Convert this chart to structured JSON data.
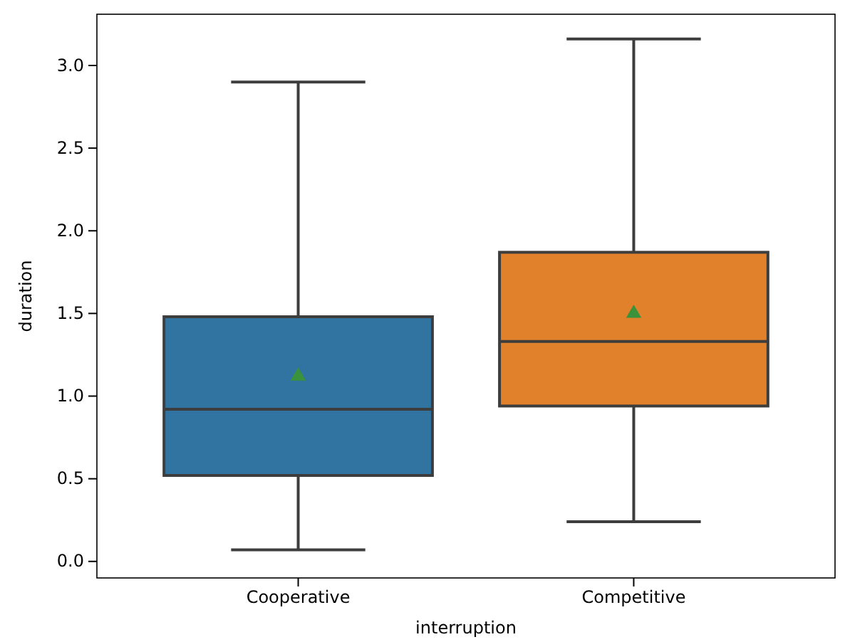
{
  "chart_data": {
    "type": "box",
    "xlabel": "interruption",
    "ylabel": "duration",
    "categories": [
      "Cooperative",
      "Competitive"
    ],
    "colors": [
      "#3274a1",
      "#e1812c"
    ],
    "boxes": [
      {
        "low": 0.07,
        "q1": 0.52,
        "median": 0.92,
        "q3": 1.48,
        "high": 2.9,
        "mean": 1.12
      },
      {
        "low": 0.24,
        "q1": 0.94,
        "median": 1.33,
        "q3": 1.87,
        "high": 3.16,
        "mean": 1.5
      }
    ],
    "ylim": [
      -0.1,
      3.31
    ],
    "yticks": [
      {
        "value": 0,
        "label": "0.0"
      },
      {
        "value": 0.5,
        "label": "0.5"
      },
      {
        "value": 1,
        "label": "1.0"
      },
      {
        "value": 1.5,
        "label": "1.5"
      },
      {
        "value": 2,
        "label": "2.0"
      },
      {
        "value": 2.5,
        "label": "2.5"
      },
      {
        "value": 3,
        "label": "3.0"
      }
    ],
    "grid": false
  }
}
